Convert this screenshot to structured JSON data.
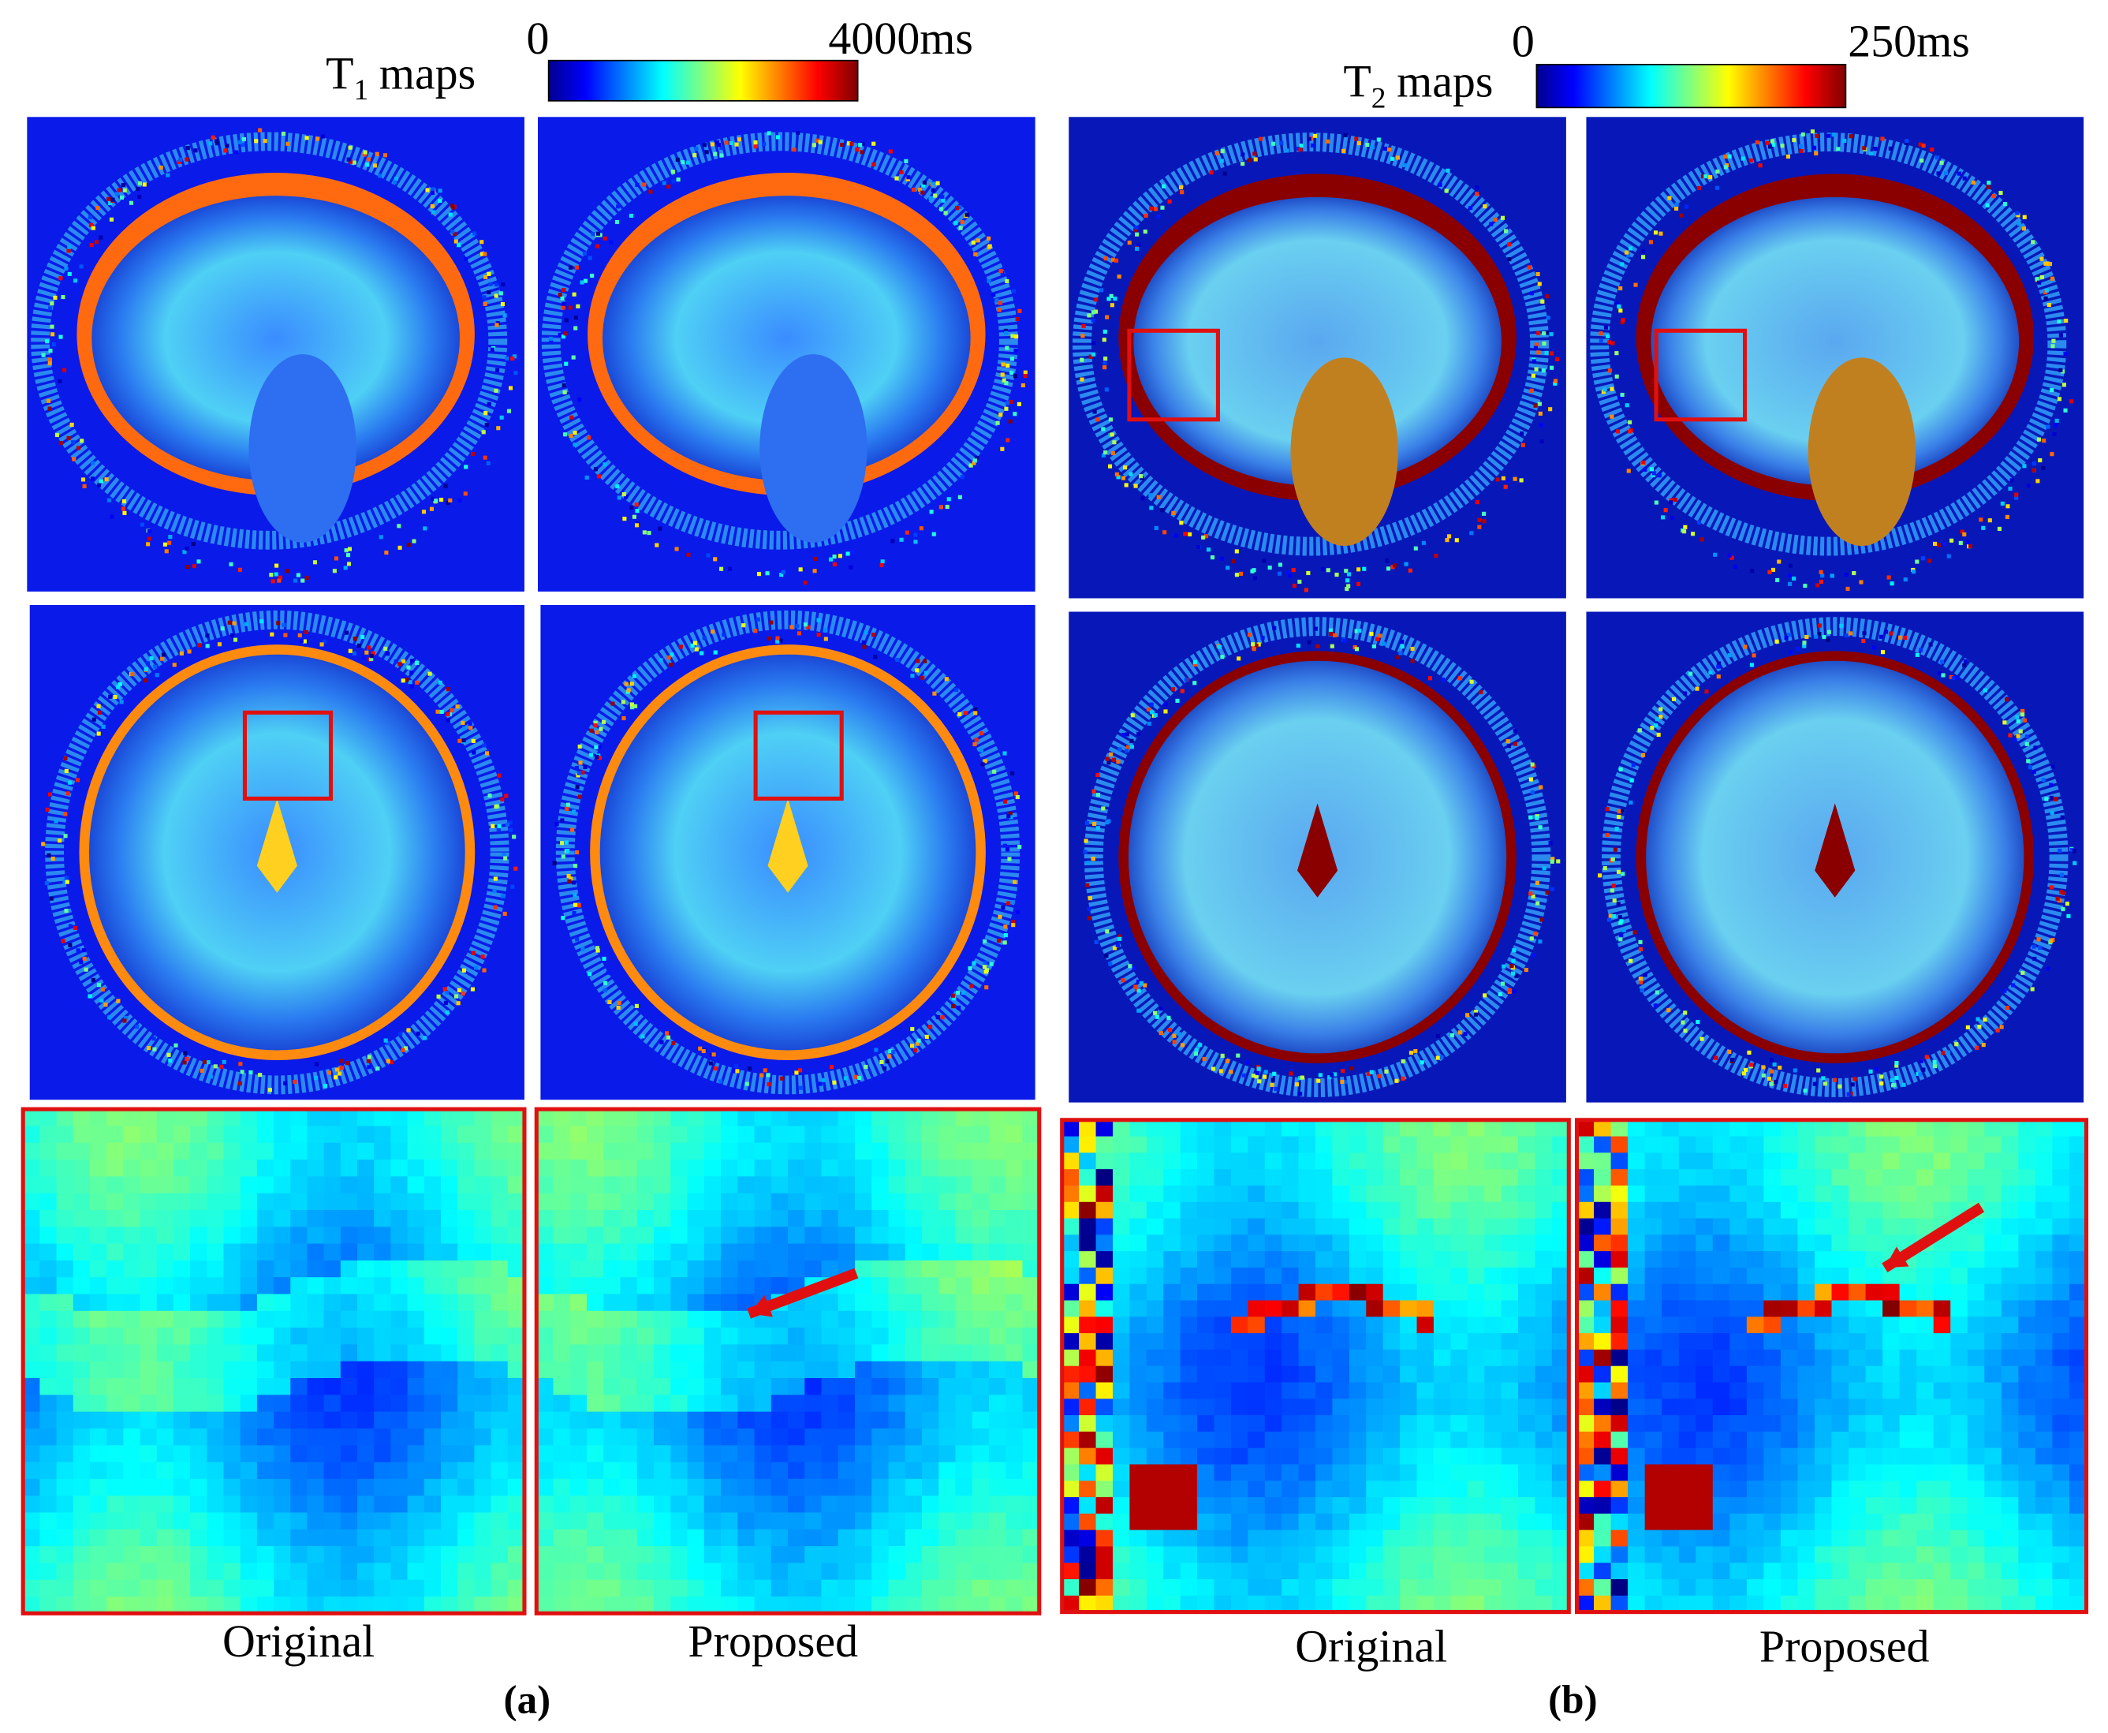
{
  "figure": {
    "panels": [
      {
        "title": {
          "symbol": "T",
          "subscript": "1",
          "suffix": "maps"
        },
        "colorbar": {
          "min_label": "0",
          "max_label": "4000ms"
        },
        "columns": [
          "Original",
          "Proposed"
        ],
        "label": "(a)"
      },
      {
        "title": {
          "symbol": "T",
          "subscript": "2",
          "suffix": "maps"
        },
        "colorbar": {
          "min_label": "0",
          "max_label": "250ms"
        },
        "columns": [
          "Original",
          "Proposed"
        ],
        "label": "(b)"
      }
    ]
  }
}
